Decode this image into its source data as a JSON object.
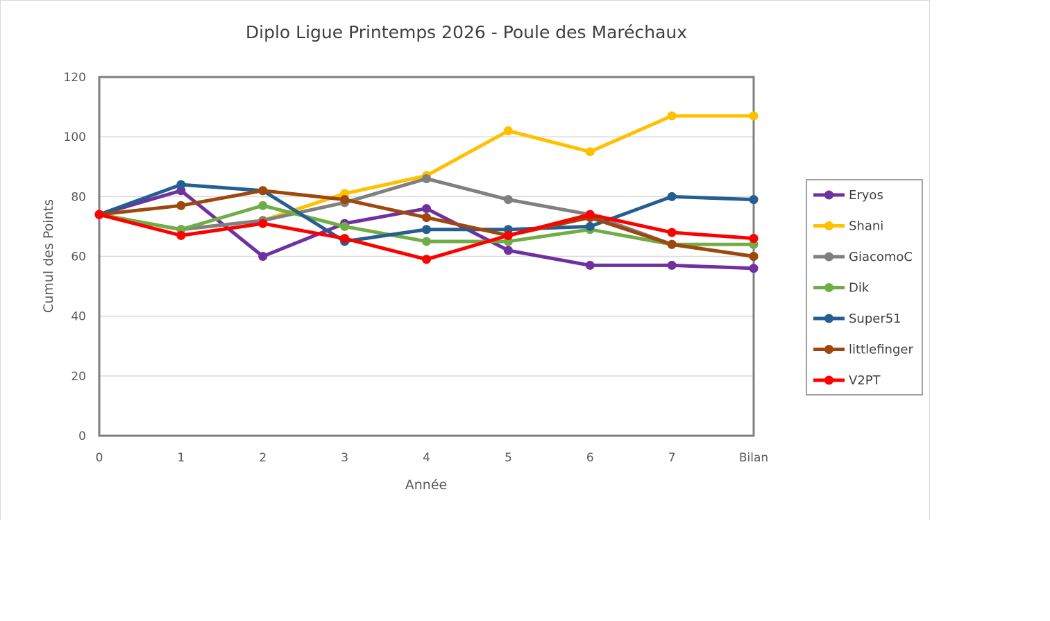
{
  "chart_data": {
    "type": "line",
    "title": "Diplo Ligue Printemps 2026 - Poule des Maréchaux",
    "xlabel": "Année",
    "ylabel": "Cumul des Points",
    "categories": [
      "0",
      "1",
      "2",
      "3",
      "4",
      "5",
      "6",
      "7",
      "Bilan"
    ],
    "ylim": [
      0,
      120
    ],
    "yticks": [
      0,
      20,
      40,
      60,
      80,
      100,
      120
    ],
    "grid": true,
    "legend_position": "right",
    "series": [
      {
        "name": "Eryos",
        "color": "#7030a0",
        "values": [
          74,
          82,
          60,
          71,
          76,
          62,
          57,
          57,
          56
        ]
      },
      {
        "name": "Shani",
        "color": "#ffc000",
        "values": [
          74,
          69,
          72,
          81,
          87,
          102,
          95,
          107,
          107
        ]
      },
      {
        "name": "GiacomoC",
        "color": "#808080",
        "values": [
          74,
          69,
          72,
          78,
          86,
          79,
          74,
          64,
          60
        ]
      },
      {
        "name": "Dik",
        "color": "#70ad47",
        "values": [
          74,
          69,
          77,
          70,
          65,
          65,
          69,
          64,
          64
        ]
      },
      {
        "name": "Super51",
        "color": "#255e91",
        "values": [
          74,
          84,
          82,
          65,
          69,
          69,
          70,
          80,
          79
        ]
      },
      {
        "name": "littlefinger",
        "color": "#9e480e",
        "values": [
          74,
          77,
          82,
          79,
          73,
          67,
          73,
          64,
          60
        ]
      },
      {
        "name": "V2PT",
        "color": "#ff0000",
        "values": [
          74,
          67,
          71,
          66,
          59,
          67,
          74,
          68,
          66
        ]
      }
    ]
  }
}
